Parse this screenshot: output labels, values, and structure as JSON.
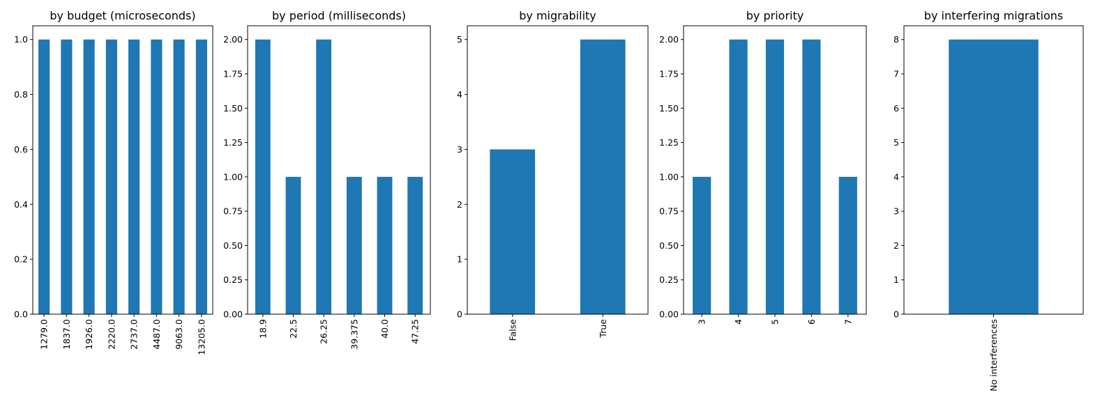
{
  "bar_color": "#1f77b4",
  "chart_data": [
    {
      "type": "bar",
      "title": "by budget (microseconds)",
      "categories": [
        "1279.0",
        "1837.0",
        "1926.0",
        "2220.0",
        "2737.0",
        "4487.0",
        "9063.0",
        "13205.0"
      ],
      "values": [
        1,
        1,
        1,
        1,
        1,
        1,
        1,
        1
      ],
      "ylim": [
        0,
        1.05
      ],
      "yticks": [
        "0.0",
        "0.2",
        "0.4",
        "0.6",
        "0.8",
        "1.0"
      ],
      "xlabel": "",
      "ylabel": "",
      "grid": false
    },
    {
      "type": "bar",
      "title": "by period (milliseconds)",
      "categories": [
        "18.9",
        "22.5",
        "26.25",
        "39.375",
        "40.0",
        "47.25"
      ],
      "values": [
        2,
        1,
        2,
        1,
        1,
        1
      ],
      "ylim": [
        0,
        2.1
      ],
      "yticks": [
        "0.00",
        "0.25",
        "0.50",
        "0.75",
        "1.00",
        "1.25",
        "1.50",
        "1.75",
        "2.00"
      ],
      "xlabel": "",
      "ylabel": "",
      "grid": false
    },
    {
      "type": "bar",
      "title": "by migrability",
      "categories": [
        "False",
        "True"
      ],
      "values": [
        3,
        5
      ],
      "ylim": [
        0,
        5.25
      ],
      "yticks": [
        "0",
        "1",
        "2",
        "3",
        "4",
        "5"
      ],
      "xlabel": "",
      "ylabel": "",
      "grid": false
    },
    {
      "type": "bar",
      "title": "by priority",
      "categories": [
        "3",
        "4",
        "5",
        "6",
        "7"
      ],
      "values": [
        1,
        2,
        2,
        2,
        1
      ],
      "ylim": [
        0,
        2.1
      ],
      "yticks": [
        "0.00",
        "0.25",
        "0.50",
        "0.75",
        "1.00",
        "1.25",
        "1.50",
        "1.75",
        "2.00"
      ],
      "xlabel": "",
      "ylabel": "",
      "grid": false
    },
    {
      "type": "bar",
      "title": "by interfering migrations",
      "categories": [
        "No interferences"
      ],
      "values": [
        8
      ],
      "ylim": [
        0,
        8.4
      ],
      "yticks": [
        "0",
        "1",
        "2",
        "3",
        "4",
        "5",
        "6",
        "7",
        "8"
      ],
      "xlabel": "",
      "ylabel": "",
      "grid": false
    }
  ]
}
